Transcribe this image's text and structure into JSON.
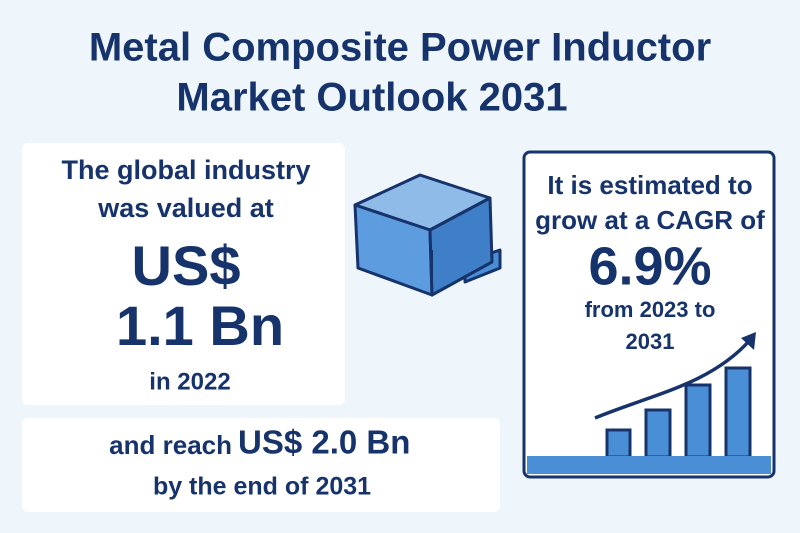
{
  "header": {
    "title_lines": [
      "Metal Composite Power Inductor",
      "Market Outlook 2031"
    ]
  },
  "valued": {
    "lines": [
      "The global industry",
      "was valued at"
    ],
    "currency": "US$",
    "amount": "1.1 Bn",
    "year": "in 2022"
  },
  "forecast": {
    "lead": "and reach",
    "amount": "US$ 2.0 Bn",
    "tail": "by the end of 2031"
  },
  "growth": {
    "lines": [
      "It is estimated to",
      "grow at a CAGR of"
    ],
    "rate": "6.9%",
    "period": [
      "from 2023 to",
      "2031"
    ]
  }
}
